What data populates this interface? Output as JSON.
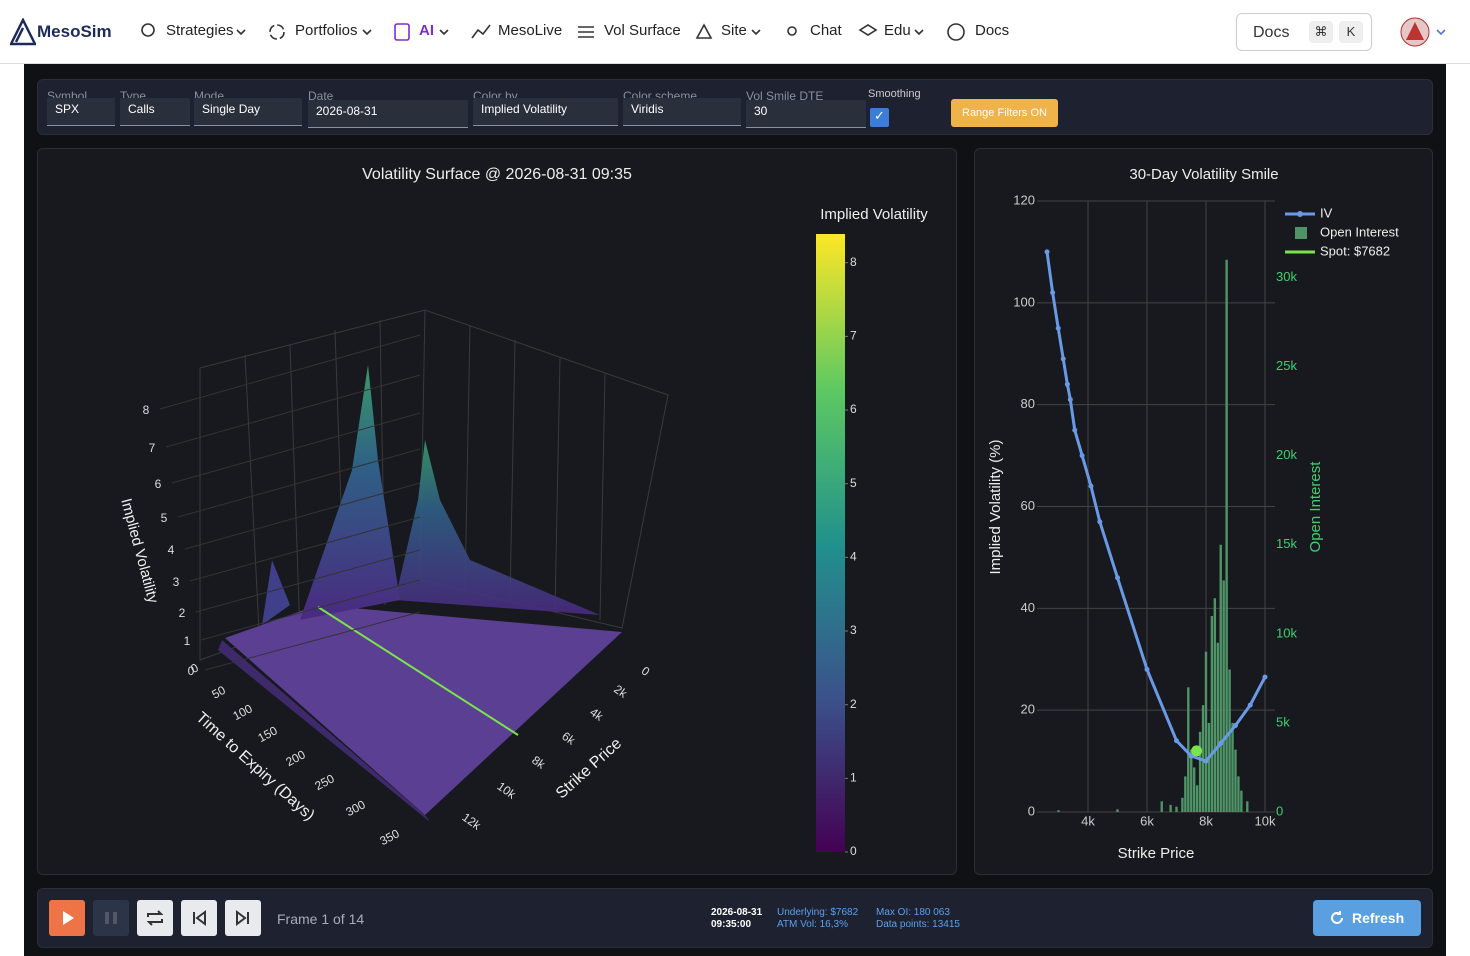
{
  "nav": {
    "brand": "MesoSim",
    "items": [
      "Strategies",
      "Portfolios",
      "AI",
      "MesoLive",
      "Vol Surface",
      "Site",
      "Chat",
      "Edu",
      "Docs"
    ],
    "search": "Docs",
    "shortcut": [
      "⌘",
      "K"
    ]
  },
  "controls": {
    "fields": [
      {
        "label": "Symbol",
        "value": "SPX"
      },
      {
        "label": "Type",
        "value": "Calls"
      },
      {
        "label": "Mode",
        "value": "Single Day"
      },
      {
        "label": "Date",
        "value": "2026-08-31"
      },
      {
        "label": "Color by",
        "value": "Implied Volatility"
      },
      {
        "label": "Color scheme",
        "value": "Viridis"
      },
      {
        "label": "Vol Smile DTE",
        "value": "30"
      }
    ],
    "smoothing_label": "Smoothing",
    "range_filters": "Range Filters ON"
  },
  "surface_chart": {
    "type": "surface3d",
    "title": "Volatility Surface @ 2026-08-31 09:35",
    "z_label": "Implied Volatility",
    "x_label": "Time to Expiry (Days)",
    "y_label": "Strike Price",
    "z_ticks": [
      0,
      1,
      2,
      3,
      4,
      5,
      6,
      7,
      8
    ],
    "x_ticks": [
      0,
      50,
      100,
      150,
      200,
      250,
      300,
      350
    ],
    "y_ticks": [
      0,
      {
        "value": 2000,
        "label": "2k"
      },
      {
        "value": 4000,
        "label": "4k"
      },
      {
        "value": 6000,
        "label": "6k"
      },
      {
        "value": 8000,
        "label": "8k"
      },
      {
        "value": 10000,
        "label": "10k"
      },
      {
        "value": 12000,
        "label": "12k"
      }
    ],
    "colorbar": {
      "title": "Implied Volatility",
      "lim": [
        0,
        8.39
      ],
      "ticks": [
        0,
        1,
        2,
        3,
        4,
        5,
        6,
        7,
        8
      ]
    }
  },
  "smile_chart": {
    "type": "line",
    "title": "30-Day Volatility Smile",
    "x_label": "Strike Price",
    "y_label": "Implied Volatility (%)",
    "y2_label": "Open Interest",
    "grid": true,
    "xlim": [
      2270,
      10340
    ],
    "xticks": [
      {
        "value": 4000,
        "label": "4k"
      },
      {
        "value": 6000,
        "label": "6k"
      },
      {
        "value": 8000,
        "label": "8k"
      },
      {
        "value": 10000,
        "label": "10k"
      }
    ],
    "ylim": [
      0,
      120
    ],
    "yticks": [
      0,
      20,
      40,
      60,
      80,
      100,
      120
    ],
    "y2lim": [
      0,
      34300
    ],
    "y2ticks": [
      0,
      {
        "value": 5000,
        "label": "5k"
      },
      {
        "value": 10000,
        "label": "10k"
      },
      {
        "value": 15000,
        "label": "15k"
      },
      {
        "value": 20000,
        "label": "20k"
      },
      {
        "value": 25000,
        "label": "25k"
      },
      {
        "value": 30000,
        "label": "30k"
      }
    ],
    "series": [
      {
        "name": "IV",
        "color": "#6a9ae6",
        "type": "line",
        "x": [
          2610,
          2800,
          2990,
          3160,
          3300,
          3400,
          3550,
          3800,
          4100,
          4400,
          5000,
          6000,
          7000,
          7500,
          8000,
          8500,
          9000,
          9500,
          10000
        ],
        "values": [
          110,
          102,
          95,
          89,
          84,
          81,
          75,
          70,
          64,
          57,
          46,
          28,
          14,
          11,
          10,
          13.5,
          17,
          21,
          26.5
        ]
      },
      {
        "name": "Open Interest",
        "color": "#4f9467",
        "type": "bar",
        "axis": "y2",
        "x": [
          3000,
          5000,
          6500,
          6800,
          7000,
          7200,
          7300,
          7400,
          7500,
          7600,
          7700,
          7800,
          7900,
          8000,
          8100,
          8200,
          8300,
          8400,
          8500,
          8600,
          8700,
          8800,
          8900,
          9000,
          9100,
          9200,
          9400
        ],
        "values": [
          100,
          150,
          600,
          400,
          300,
          800,
          2000,
          7000,
          3500,
          2500,
          1500,
          4500,
          6000,
          9000,
          5000,
          11000,
          12000,
          9500,
          15000,
          13000,
          31000,
          8000,
          5000,
          3500,
          2000,
          1200,
          600
        ]
      },
      {
        "name": "Spot: $7682",
        "color": "#7be34b",
        "type": "marker",
        "x": [
          7682
        ],
        "values": [
          12
        ]
      }
    ]
  },
  "footer": {
    "frame": "Frame 1 of 14",
    "date": "2026-08-31",
    "time": "09:35:00",
    "underlying": "Underlying: $7682",
    "atm_vol": "ATM Vol: 16,3%",
    "max_oi": "Max OI: 180 063",
    "data_points": "Data points: 13415",
    "refresh": "Refresh"
  }
}
